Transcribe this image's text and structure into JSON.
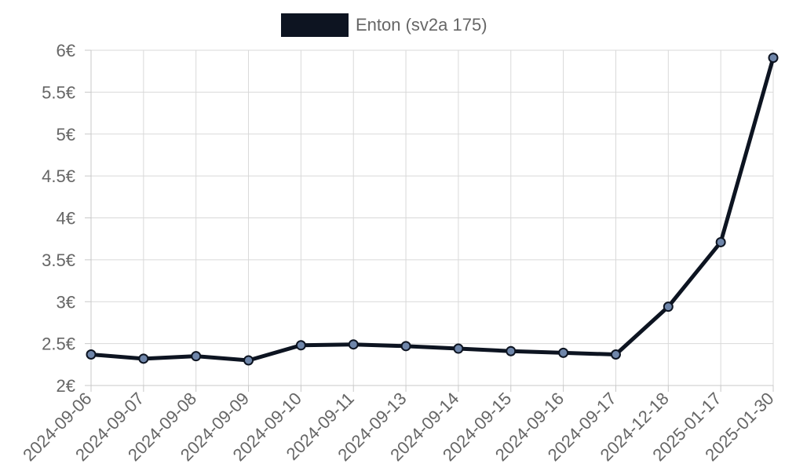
{
  "chart_data": {
    "type": "line",
    "title": "",
    "xlabel": "",
    "ylabel": "",
    "categories": [
      "2024-09-06",
      "2024-09-07",
      "2024-09-08",
      "2024-09-09",
      "2024-09-10",
      "2024-09-11",
      "2024-09-13",
      "2024-09-14",
      "2024-09-15",
      "2024-09-16",
      "2024-09-17",
      "2024-12-18",
      "2025-01-17",
      "2025-01-30"
    ],
    "series": [
      {
        "name": "Enton (sv2a 175)",
        "values": [
          2.37,
          2.32,
          2.35,
          2.3,
          2.48,
          2.49,
          2.47,
          2.44,
          2.41,
          2.39,
          2.37,
          2.94,
          3.71,
          5.91
        ]
      }
    ],
    "ylim": [
      2,
      6
    ],
    "y_ticks": [
      "2€",
      "2.5€",
      "3€",
      "3.5€",
      "4€",
      "4.5€",
      "5€",
      "5.5€",
      "6€"
    ],
    "grid": true,
    "legend_position": "top-center",
    "colors": {
      "line": "#0d1421",
      "point_fill": "#6f86aa",
      "grid": "#d9d9d9",
      "axis": "#c8c8c8",
      "text": "#666666",
      "legend_swatch": "#0d1421"
    }
  }
}
